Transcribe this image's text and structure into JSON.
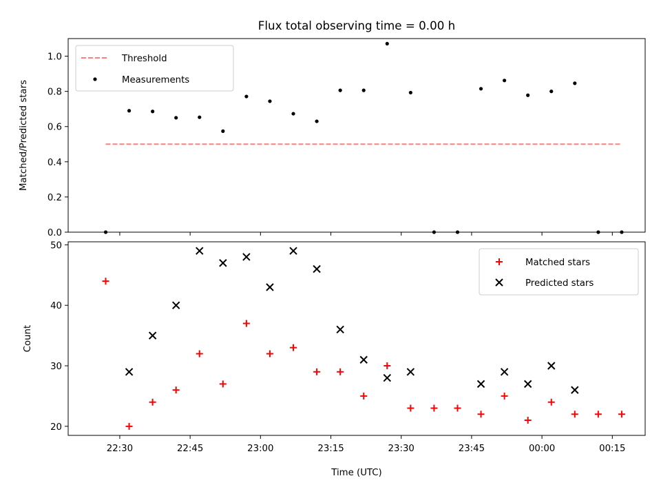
{
  "chart_data": [
    {
      "type": "scatter",
      "title": "Flux total observing time = 0.00 h",
      "xlabel": "",
      "ylabel": "Matched/Predicted stars",
      "ylim": [
        0,
        1.1
      ],
      "yticks": [
        "0.0",
        "0.2",
        "0.4",
        "0.6",
        "0.8",
        "1.0"
      ],
      "legend_position": "upper-left",
      "threshold": {
        "name": "Threshold",
        "value": 0.5,
        "x_start": "22:27",
        "x_end": "00:17",
        "color": "#ff7f7f",
        "style": "dashed"
      },
      "series": [
        {
          "name": "Measurements",
          "color": "#000000",
          "marker": "dot",
          "points": [
            [
              "22:27",
              0.0
            ],
            [
              "22:32",
              0.69
            ],
            [
              "22:37",
              0.686
            ],
            [
              "22:42",
              0.65
            ],
            [
              "22:47",
              0.653
            ],
            [
              "22:52",
              0.574
            ],
            [
              "22:57",
              0.771
            ],
            [
              "23:02",
              0.744
            ],
            [
              "23:07",
              0.673
            ],
            [
              "23:12",
              0.63
            ],
            [
              "23:17",
              0.806
            ],
            [
              "23:22",
              0.806
            ],
            [
              "23:27",
              1.071
            ],
            [
              "23:32",
              0.793
            ],
            [
              "23:37",
              0.0
            ],
            [
              "23:42",
              0.0
            ],
            [
              "23:47",
              0.815
            ],
            [
              "23:52",
              0.862
            ],
            [
              "23:57",
              0.778
            ],
            [
              "00:02",
              0.8
            ],
            [
              "00:07",
              0.846
            ],
            [
              "00:12",
              0.0
            ],
            [
              "00:17",
              0.0
            ]
          ]
        }
      ]
    },
    {
      "type": "scatter",
      "title": "",
      "xlabel": "Time (UTC)",
      "ylabel": "Count",
      "ylim": [
        18.5,
        50.5
      ],
      "yticks": [
        "20",
        "30",
        "40",
        "50"
      ],
      "xticks": [
        "22:30",
        "22:45",
        "23:00",
        "23:15",
        "23:30",
        "23:45",
        "00:00",
        "00:15"
      ],
      "xlim": [
        "22:19",
        "00:22"
      ],
      "legend_position": "upper-right",
      "series": [
        {
          "name": "Matched stars",
          "color": "#ff0000",
          "marker": "plus",
          "points": [
            [
              "22:27",
              44
            ],
            [
              "22:32",
              20
            ],
            [
              "22:37",
              24
            ],
            [
              "22:42",
              26
            ],
            [
              "22:47",
              32
            ],
            [
              "22:52",
              27
            ],
            [
              "22:57",
              37
            ],
            [
              "23:02",
              32
            ],
            [
              "23:07",
              33
            ],
            [
              "23:12",
              29
            ],
            [
              "23:17",
              29
            ],
            [
              "23:22",
              25
            ],
            [
              "23:27",
              30
            ],
            [
              "23:32",
              23
            ],
            [
              "23:37",
              23
            ],
            [
              "23:42",
              23
            ],
            [
              "23:47",
              22
            ],
            [
              "23:52",
              25
            ],
            [
              "23:57",
              21
            ],
            [
              "00:02",
              24
            ],
            [
              "00:07",
              22
            ],
            [
              "00:12",
              22
            ],
            [
              "00:17",
              22
            ]
          ]
        },
        {
          "name": "Predicted stars",
          "color": "#000000",
          "marker": "x",
          "points": [
            [
              "22:32",
              29
            ],
            [
              "22:37",
              35
            ],
            [
              "22:42",
              40
            ],
            [
              "22:47",
              49
            ],
            [
              "22:52",
              47
            ],
            [
              "22:57",
              48
            ],
            [
              "23:02",
              43
            ],
            [
              "23:07",
              49
            ],
            [
              "23:12",
              46
            ],
            [
              "23:17",
              36
            ],
            [
              "23:22",
              31
            ],
            [
              "23:27",
              28
            ],
            [
              "23:32",
              29
            ],
            [
              "23:47",
              27
            ],
            [
              "23:52",
              29
            ],
            [
              "23:57",
              27
            ],
            [
              "00:02",
              30
            ],
            [
              "00:07",
              26
            ]
          ]
        }
      ]
    }
  ]
}
